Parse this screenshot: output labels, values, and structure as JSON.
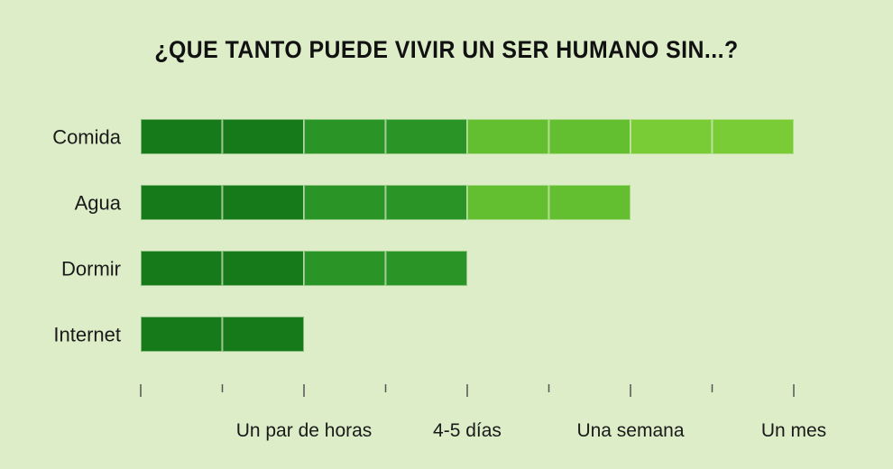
{
  "chart_data": {
    "type": "bar",
    "title": "¿QUE TANTO PUEDE VIVIR UN SER HUMANO SIN...?",
    "categories": [
      "Comida",
      "Agua",
      "Dormir",
      "Internet"
    ],
    "values": [
      8,
      6,
      4,
      2
    ],
    "xlim": [
      0,
      8
    ],
    "xticks": [
      0,
      1,
      2,
      3,
      4,
      5,
      6,
      7,
      8
    ],
    "xtick_labels": [
      {
        "pos": 2,
        "label": "Un par de horas"
      },
      {
        "pos": 4,
        "label": "4-5 días"
      },
      {
        "pos": 6,
        "label": "Una semana"
      },
      {
        "pos": 8,
        "label": "Un mes"
      }
    ],
    "segment_colors": [
      "#177a1a",
      "#177a1a",
      "#2a9426",
      "#2a9426",
      "#63bf2f",
      "#63bf2f",
      "#79cc36",
      "#79cc36"
    ],
    "grid": false,
    "legend": "none"
  }
}
